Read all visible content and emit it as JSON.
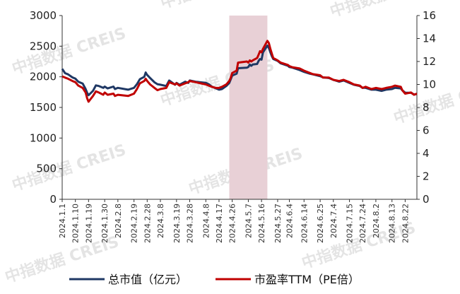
{
  "chart_data": {
    "type": "line",
    "title": "",
    "xlabel": "",
    "ylabel": "",
    "y_left": {
      "lim": [
        0,
        3000
      ],
      "ticks": [
        0,
        500,
        1000,
        1500,
        2000,
        2500,
        3000
      ]
    },
    "y_right": {
      "lim": [
        0,
        16
      ],
      "ticks": [
        0,
        2,
        4,
        6,
        8,
        10,
        12,
        14,
        16
      ]
    },
    "x_tick_labels": [
      "2024.1.1",
      "2024.1.10",
      "2024.1.19",
      "2024.1.30",
      "2024.2.8",
      "2024.2.19",
      "2024.2.28",
      "2024.3.8",
      "2024.3.19",
      "2024.3.28",
      "2024.4.8",
      "2024.4.17",
      "2024.4.26",
      "2024.5.7",
      "2024.5.16",
      "2024.5.27",
      "2024.6.4",
      "2024.6.14",
      "2024.6.25",
      "2024.7.4",
      "2024.7.15",
      "2024.7.24",
      "2024.8.2",
      "2024.8.13",
      "2024.8.22"
    ],
    "highlight_span": {
      "from": "2024.4.24",
      "to": "2024.5.20",
      "color": "#e8d0d6"
    },
    "legend": {
      "placement": "bottom"
    },
    "grid": false,
    "series": [
      {
        "name": "总市值（亿元）",
        "axis": "left",
        "color": "#1f3864",
        "values": [
          [
            "2024.1.1",
            2130
          ],
          [
            "2024.1.3",
            2060
          ],
          [
            "2024.1.5",
            2040
          ],
          [
            "2024.1.8",
            1990
          ],
          [
            "2024.1.10",
            1970
          ],
          [
            "2024.1.12",
            1920
          ],
          [
            "2024.1.15",
            1890
          ],
          [
            "2024.1.17",
            1800
          ],
          [
            "2024.1.18",
            1740
          ],
          [
            "2024.1.19",
            1700
          ],
          [
            "2024.1.22",
            1770
          ],
          [
            "2024.1.24",
            1860
          ],
          [
            "2024.1.26",
            1850
          ],
          [
            "2024.1.29",
            1820
          ],
          [
            "2024.1.30",
            1840
          ],
          [
            "2024.2.1",
            1810
          ],
          [
            "2024.2.5",
            1840
          ],
          [
            "2024.2.6",
            1800
          ],
          [
            "2024.2.8",
            1820
          ],
          [
            "2024.2.15",
            1790
          ],
          [
            "2024.2.19",
            1820
          ],
          [
            "2024.2.21",
            1880
          ],
          [
            "2024.2.23",
            1960
          ],
          [
            "2024.2.26",
            2000
          ],
          [
            "2024.2.27",
            2070
          ],
          [
            "2024.2.28",
            2030
          ],
          [
            "2024.3.1",
            1980
          ],
          [
            "2024.3.4",
            1910
          ],
          [
            "2024.3.6",
            1880
          ],
          [
            "2024.3.8",
            1870
          ],
          [
            "2024.3.12",
            1850
          ],
          [
            "2024.3.14",
            1940
          ],
          [
            "2024.3.18",
            1870
          ],
          [
            "2024.3.19",
            1900
          ],
          [
            "2024.3.21",
            1870
          ],
          [
            "2024.3.25",
            1920
          ],
          [
            "2024.3.27",
            1900
          ],
          [
            "2024.3.28",
            1940
          ],
          [
            "2024.4.1",
            1920
          ],
          [
            "2024.4.8",
            1900
          ],
          [
            "2024.4.10",
            1880
          ],
          [
            "2024.4.12",
            1840
          ],
          [
            "2024.4.15",
            1810
          ],
          [
            "2024.4.17",
            1790
          ],
          [
            "2024.4.19",
            1800
          ],
          [
            "2024.4.22",
            1850
          ],
          [
            "2024.4.24",
            1900
          ],
          [
            "2024.4.25",
            1960
          ],
          [
            "2024.4.26",
            2020
          ],
          [
            "2024.4.29",
            2050
          ],
          [
            "2024.4.30",
            2140
          ],
          [
            "2024.5.6",
            2150
          ],
          [
            "2024.5.7",
            2160
          ],
          [
            "2024.5.8",
            2200
          ],
          [
            "2024.5.9",
            2180
          ],
          [
            "2024.5.10",
            2200
          ],
          [
            "2024.5.13",
            2210
          ],
          [
            "2024.5.14",
            2260
          ],
          [
            "2024.5.15",
            2290
          ],
          [
            "2024.5.16",
            2280
          ],
          [
            "2024.5.17",
            2400
          ],
          [
            "2024.5.20",
            2510
          ],
          [
            "2024.5.21",
            2470
          ],
          [
            "2024.5.22",
            2400
          ],
          [
            "2024.5.23",
            2340
          ],
          [
            "2024.5.24",
            2290
          ],
          [
            "2024.5.27",
            2260
          ],
          [
            "2024.5.29",
            2220
          ],
          [
            "2024.6.3",
            2180
          ],
          [
            "2024.6.4",
            2160
          ],
          [
            "2024.6.6",
            2150
          ],
          [
            "2024.6.11",
            2110
          ],
          [
            "2024.6.14",
            2080
          ],
          [
            "2024.6.18",
            2050
          ],
          [
            "2024.6.20",
            2040
          ],
          [
            "2024.6.25",
            2010
          ],
          [
            "2024.6.27",
            1990
          ],
          [
            "2024.7.1",
            1980
          ],
          [
            "2024.7.4",
            1950
          ],
          [
            "2024.7.8",
            1920
          ],
          [
            "2024.7.11",
            1940
          ],
          [
            "2024.7.15",
            1900
          ],
          [
            "2024.7.18",
            1870
          ],
          [
            "2024.7.22",
            1850
          ],
          [
            "2024.7.24",
            1820
          ],
          [
            "2024.7.26",
            1820
          ],
          [
            "2024.7.30",
            1790
          ],
          [
            "2024.8.2",
            1790
          ],
          [
            "2024.8.6",
            1770
          ],
          [
            "2024.8.9",
            1790
          ],
          [
            "2024.8.13",
            1800
          ],
          [
            "2024.8.15",
            1820
          ],
          [
            "2024.8.19",
            1810
          ],
          [
            "2024.8.20",
            1780
          ],
          [
            "2024.8.22",
            1740
          ],
          [
            "2024.8.26",
            1740
          ],
          [
            "2024.8.28",
            1710
          ],
          [
            "2024.8.30",
            1720
          ]
        ]
      },
      {
        "name": "市盈率TTM（PE倍）",
        "axis": "right",
        "color": "#c00000",
        "values": [
          [
            "2024.1.1",
            10.7
          ],
          [
            "2024.1.3",
            10.6
          ],
          [
            "2024.1.5",
            10.5
          ],
          [
            "2024.1.8",
            10.3
          ],
          [
            "2024.1.10",
            10.2
          ],
          [
            "2024.1.12",
            9.9
          ],
          [
            "2024.1.15",
            9.7
          ],
          [
            "2024.1.17",
            9.3
          ],
          [
            "2024.1.18",
            8.8
          ],
          [
            "2024.1.19",
            8.5
          ],
          [
            "2024.1.22",
            9.0
          ],
          [
            "2024.1.24",
            9.4
          ],
          [
            "2024.1.26",
            9.3
          ],
          [
            "2024.1.29",
            9.1
          ],
          [
            "2024.1.30",
            9.3
          ],
          [
            "2024.2.1",
            9.1
          ],
          [
            "2024.2.5",
            9.2
          ],
          [
            "2024.2.6",
            9.0
          ],
          [
            "2024.2.8",
            9.1
          ],
          [
            "2024.2.15",
            9.0
          ],
          [
            "2024.2.19",
            9.2
          ],
          [
            "2024.2.21",
            9.6
          ],
          [
            "2024.2.23",
            10.1
          ],
          [
            "2024.2.26",
            10.3
          ],
          [
            "2024.2.27",
            10.5
          ],
          [
            "2024.2.28",
            10.3
          ],
          [
            "2024.3.1",
            10.0
          ],
          [
            "2024.3.4",
            9.7
          ],
          [
            "2024.3.6",
            9.5
          ],
          [
            "2024.3.8",
            9.6
          ],
          [
            "2024.3.12",
            9.7
          ],
          [
            "2024.3.14",
            10.2
          ],
          [
            "2024.3.18",
            10.0
          ],
          [
            "2024.3.19",
            10.1
          ],
          [
            "2024.3.21",
            9.9
          ],
          [
            "2024.3.25",
            10.1
          ],
          [
            "2024.3.27",
            10.2
          ],
          [
            "2024.3.28",
            10.3
          ],
          [
            "2024.4.1",
            10.2
          ],
          [
            "2024.4.8",
            10.0
          ],
          [
            "2024.4.10",
            9.9
          ],
          [
            "2024.4.12",
            9.8
          ],
          [
            "2024.4.15",
            9.7
          ],
          [
            "2024.4.17",
            9.7
          ],
          [
            "2024.4.19",
            9.8
          ],
          [
            "2024.4.22",
            10.0
          ],
          [
            "2024.4.24",
            10.3
          ],
          [
            "2024.4.25",
            10.6
          ],
          [
            "2024.4.26",
            11.0
          ],
          [
            "2024.4.29",
            11.2
          ],
          [
            "2024.4.30",
            11.9
          ],
          [
            "2024.5.6",
            12.0
          ],
          [
            "2024.5.7",
            11.9
          ],
          [
            "2024.5.8",
            12.1
          ],
          [
            "2024.5.9",
            12.0
          ],
          [
            "2024.5.10",
            12.1
          ],
          [
            "2024.5.13",
            12.3
          ],
          [
            "2024.5.14",
            12.6
          ],
          [
            "2024.5.15",
            12.9
          ],
          [
            "2024.5.16",
            12.8
          ],
          [
            "2024.5.17",
            13.1
          ],
          [
            "2024.5.20",
            13.8
          ],
          [
            "2024.5.21",
            13.6
          ],
          [
            "2024.5.22",
            13.1
          ],
          [
            "2024.5.23",
            12.7
          ],
          [
            "2024.5.24",
            12.3
          ],
          [
            "2024.5.27",
            12.1
          ],
          [
            "2024.5.29",
            11.9
          ],
          [
            "2024.6.3",
            11.7
          ],
          [
            "2024.6.4",
            11.6
          ],
          [
            "2024.6.6",
            11.5
          ],
          [
            "2024.6.11",
            11.4
          ],
          [
            "2024.6.14",
            11.2
          ],
          [
            "2024.6.18",
            11.0
          ],
          [
            "2024.6.20",
            10.9
          ],
          [
            "2024.6.25",
            10.8
          ],
          [
            "2024.6.27",
            10.6
          ],
          [
            "2024.7.1",
            10.6
          ],
          [
            "2024.7.4",
            10.4
          ],
          [
            "2024.7.8",
            10.3
          ],
          [
            "2024.7.11",
            10.4
          ],
          [
            "2024.7.15",
            10.2
          ],
          [
            "2024.7.18",
            10.0
          ],
          [
            "2024.7.22",
            9.9
          ],
          [
            "2024.7.24",
            9.7
          ],
          [
            "2024.7.26",
            9.8
          ],
          [
            "2024.7.30",
            9.6
          ],
          [
            "2024.8.2",
            9.7
          ],
          [
            "2024.8.6",
            9.6
          ],
          [
            "2024.8.9",
            9.7
          ],
          [
            "2024.8.13",
            9.8
          ],
          [
            "2024.8.15",
            9.9
          ],
          [
            "2024.8.19",
            9.8
          ],
          [
            "2024.8.20",
            9.5
          ],
          [
            "2024.8.22",
            9.2
          ],
          [
            "2024.8.26",
            9.3
          ],
          [
            "2024.8.28",
            9.1
          ],
          [
            "2024.8.30",
            9.2
          ]
        ]
      }
    ]
  },
  "watermark": {
    "text": "中指数据 CREIS"
  }
}
